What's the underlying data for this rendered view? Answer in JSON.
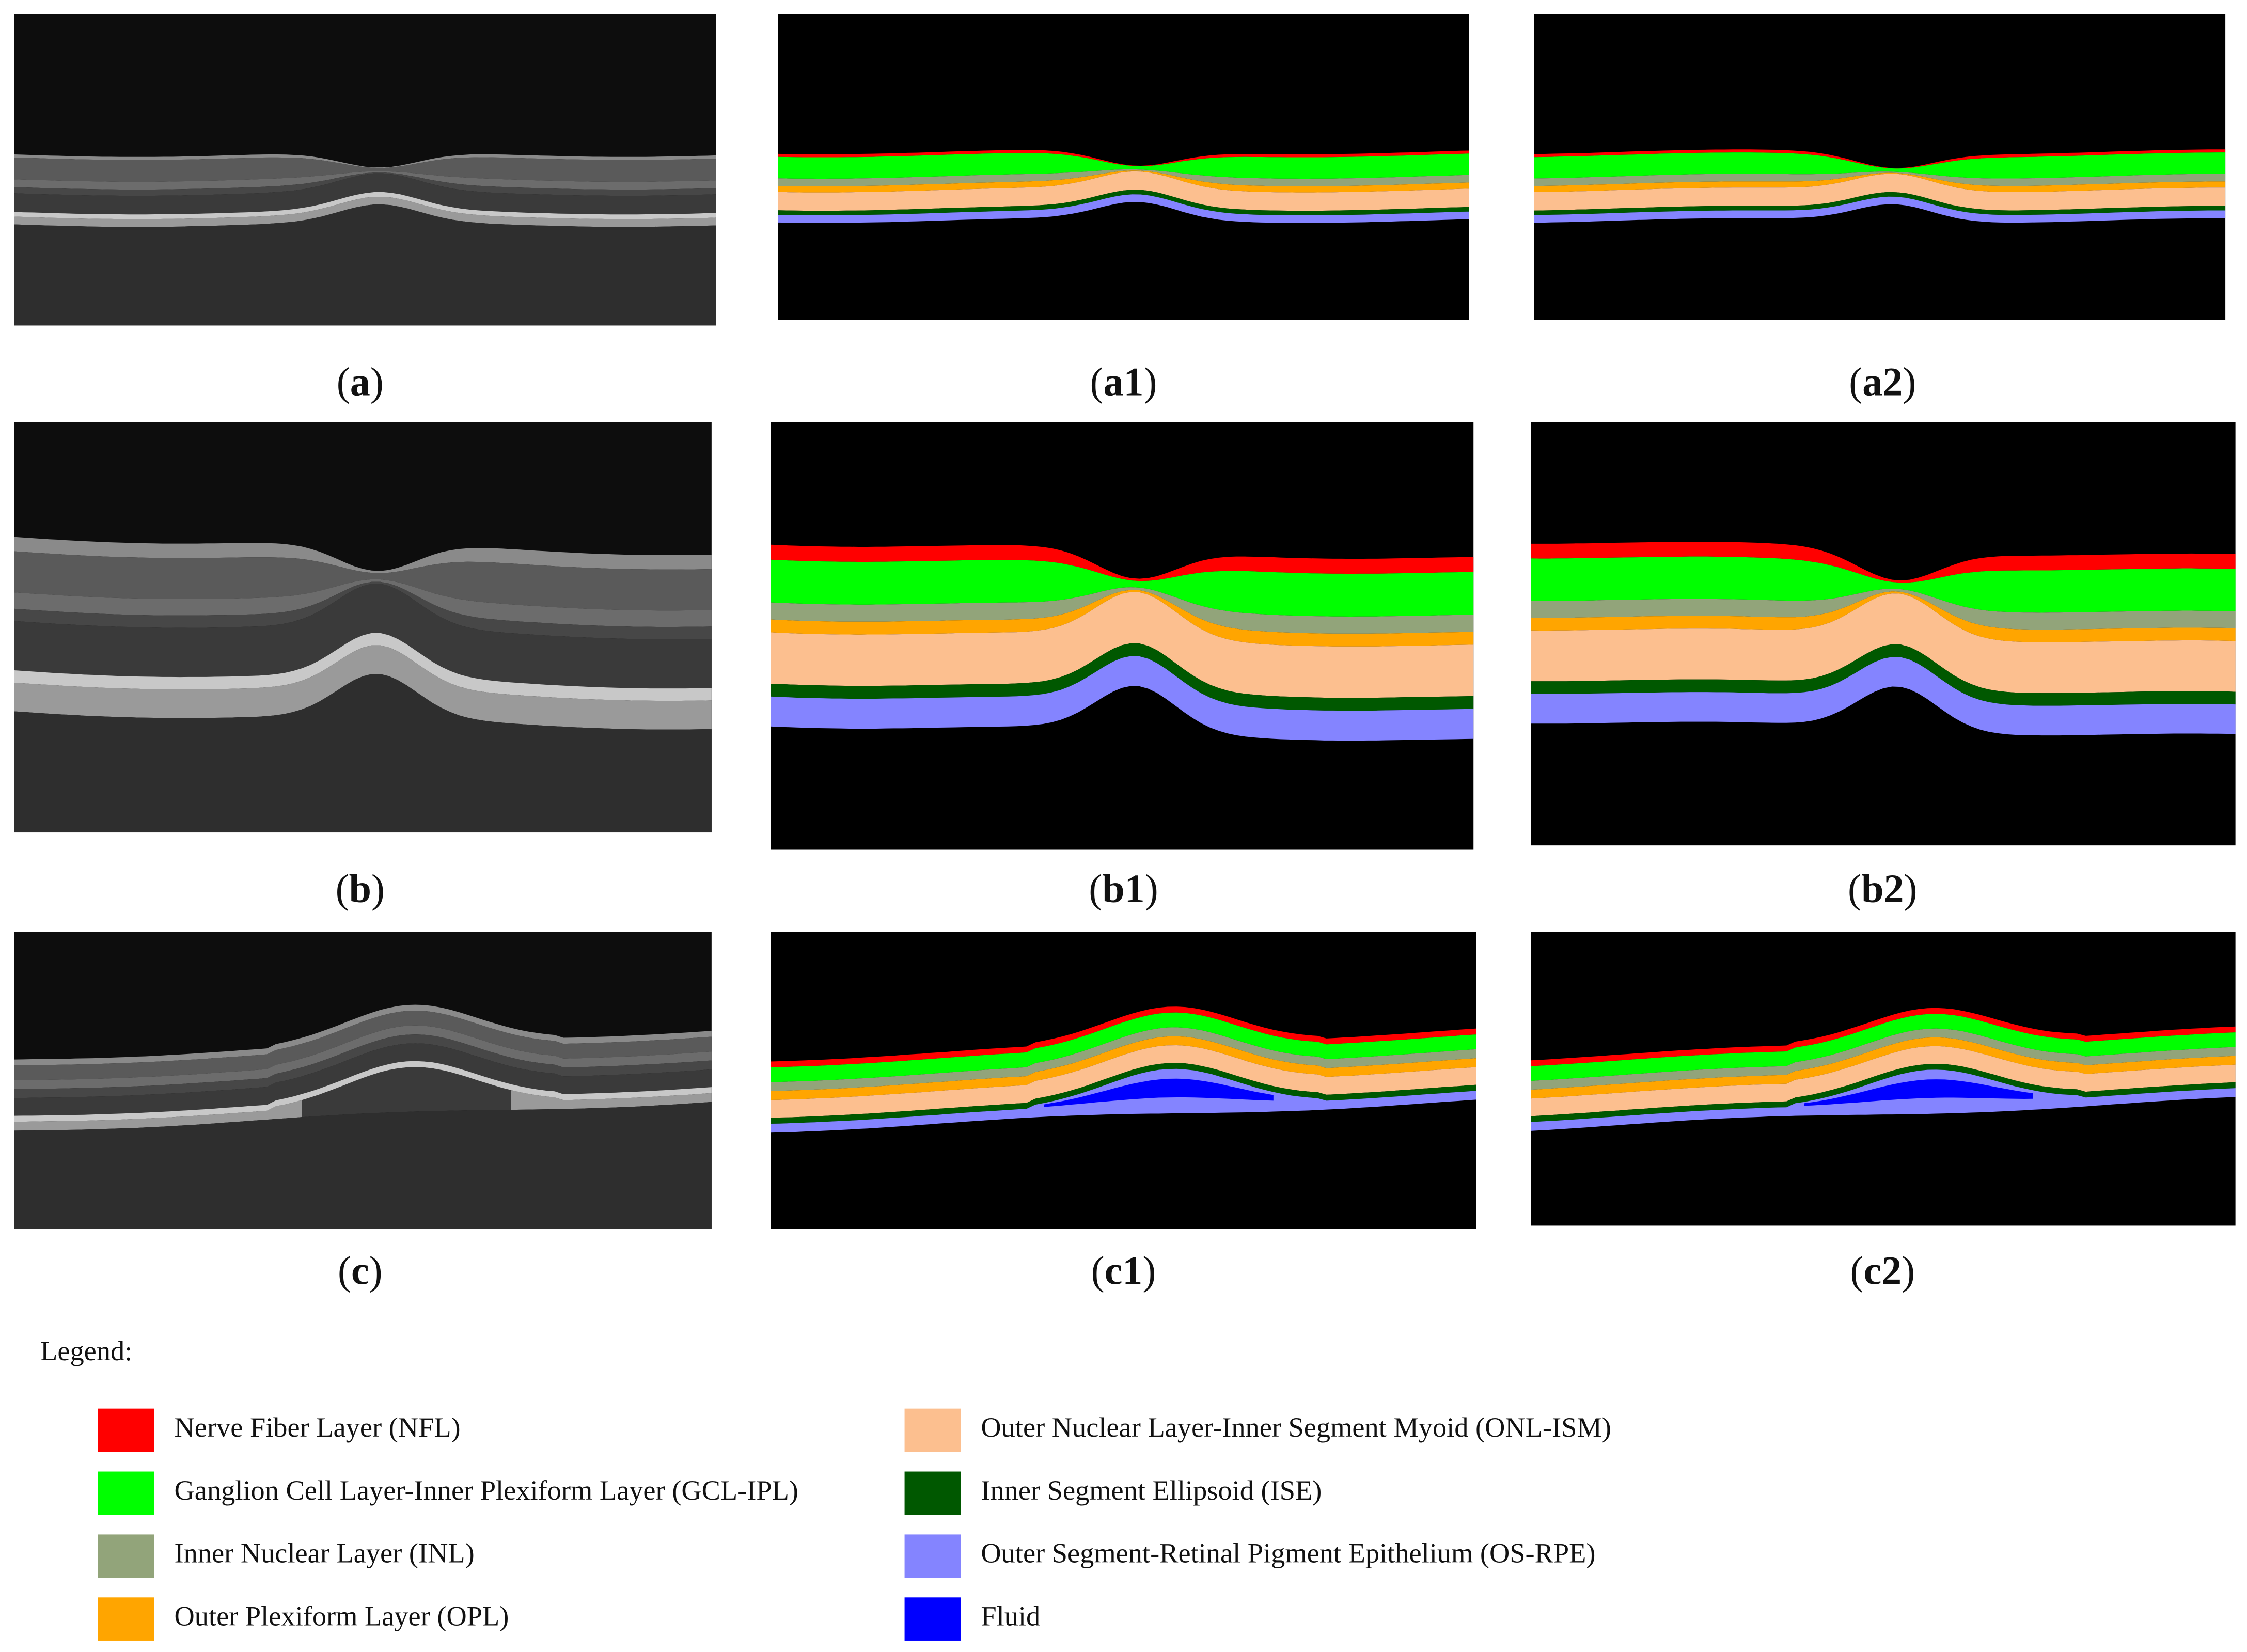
{
  "panels": [
    {
      "prefix": "(",
      "label": "a",
      "suffix": ")"
    },
    {
      "prefix": "(",
      "label": "a1",
      "suffix": ")"
    },
    {
      "prefix": "(",
      "label": "a2",
      "suffix": ")"
    },
    {
      "prefix": "(",
      "label": "b",
      "suffix": ")"
    },
    {
      "prefix": "(",
      "label": "b1",
      "suffix": ")"
    },
    {
      "prefix": "(",
      "label": "b2",
      "suffix": ")"
    },
    {
      "prefix": "(",
      "label": "c",
      "suffix": ")"
    },
    {
      "prefix": "(",
      "label": "c1",
      "suffix": ")"
    },
    {
      "prefix": "(",
      "label": "c2",
      "suffix": ")"
    }
  ],
  "legend": {
    "title": "Legend:",
    "items": [
      {
        "name": "Nerve Fiber Layer (NFL)",
        "color": "#ff0000"
      },
      {
        "name": "Ganglion Cell Layer-Inner Plexiform Layer (GCL-IPL)",
        "color": "#00ff00"
      },
      {
        "name": "Inner Nuclear Layer (INL)",
        "color": "#92a47a"
      },
      {
        "name": "Outer Plexiform Layer (OPL)",
        "color": "#ffa500"
      },
      {
        "name": "Outer Nuclear Layer-Inner Segment Myoid (ONL-ISM)",
        "color": "#fcbf8f"
      },
      {
        "name": "Inner Segment Ellipsoid (ISE)",
        "color": "#005800"
      },
      {
        "name": "Outer Segment-Retinal Pigment Epithelium (OS-RPE)",
        "color": "#8484ff"
      },
      {
        "name": "Fluid",
        "color": "#0000ff"
      }
    ]
  }
}
